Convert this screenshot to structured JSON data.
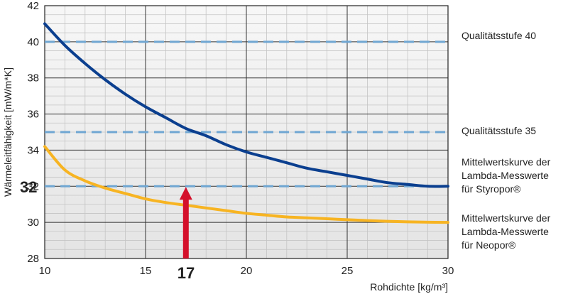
{
  "chart_data": {
    "type": "line",
    "title": "",
    "xlabel": "Rohdichte [kg/m³]",
    "ylabel": "Wärmeleitfähigkeit  [mW/m*K]",
    "xlim": [
      10,
      30
    ],
    "ylim": [
      28,
      42
    ],
    "x_ticks": [
      "10",
      "15",
      "20",
      "25",
      "30"
    ],
    "y_ticks": [
      "28",
      "30",
      "32",
      "34",
      "36",
      "38",
      "40",
      "42"
    ],
    "grid": true,
    "series": [
      {
        "name": "Mittelwertskurve der Lambda-Messwerte für Styropor®",
        "color": "#0b3f8f",
        "x": [
          10,
          11,
          12,
          13,
          14,
          15,
          16,
          17,
          18,
          19,
          20,
          21,
          22,
          23,
          24,
          25,
          26,
          27,
          28,
          29,
          30
        ],
        "y": [
          41.0,
          39.8,
          38.8,
          37.9,
          37.1,
          36.4,
          35.8,
          35.2,
          34.8,
          34.3,
          33.9,
          33.6,
          33.3,
          33.0,
          32.8,
          32.6,
          32.4,
          32.2,
          32.1,
          32.0,
          32.0
        ]
      },
      {
        "name": "Mittelwertskurve der Lambda-Messwerte für Neopor®",
        "color": "#f7b422",
        "x": [
          10,
          11,
          12,
          13,
          14,
          15,
          16,
          17,
          18,
          19,
          20,
          21,
          22,
          23,
          24,
          25,
          26,
          27,
          28,
          29,
          30
        ],
        "y": [
          34.2,
          32.9,
          32.3,
          31.9,
          31.6,
          31.3,
          31.1,
          30.95,
          30.8,
          30.65,
          30.5,
          30.4,
          30.3,
          30.25,
          30.2,
          30.15,
          30.1,
          30.06,
          30.03,
          30.01,
          30.0
        ]
      }
    ],
    "reference_lines": [
      {
        "y": 40,
        "label": "Qualitätsstufe 40",
        "color": "#6fa6d2"
      },
      {
        "y": 35,
        "label": "Qualitätsstufe 35",
        "color": "#6fa6d2"
      },
      {
        "y": 32,
        "label": "",
        "color": "#6fa6d2"
      }
    ],
    "legend_labels": {
      "styropor": [
        "Mittelwertskurve der",
        "Lambda-Messwerte",
        "für Styropor®"
      ],
      "neopor": [
        "Mittelwertskurve der",
        "Lambda-Messwerte",
        "für Neopor®"
      ]
    },
    "highlight": {
      "x_value": 17,
      "y_value": 32,
      "x_label": "17",
      "y_label": "32",
      "color": "#d4102b"
    }
  }
}
